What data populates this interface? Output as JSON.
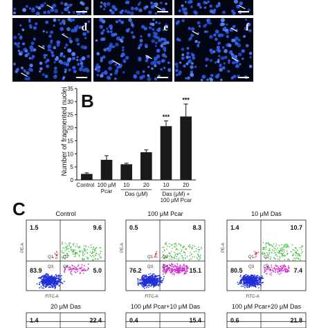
{
  "panel_a": {
    "tile_letters": [
      "",
      "",
      "",
      "d",
      "e",
      "f"
    ]
  },
  "panel_b": {
    "letter": "B",
    "ylabel": "Number of fragmented nuclei",
    "significance": [
      "",
      "",
      "",
      "",
      "***",
      "***"
    ],
    "group_labels": [
      "Das (μM)",
      "Das (μM) + 100 μM Pcar"
    ]
  },
  "chart_data": {
    "type": "bar",
    "categories": [
      "Control",
      "100 μM Pcar",
      "10",
      "20",
      "10",
      "20"
    ],
    "values": [
      2.3,
      7.7,
      6.0,
      10.6,
      20.6,
      24.3
    ],
    "errors": [
      0.4,
      1.6,
      0.4,
      0.9,
      2.0,
      4.8
    ],
    "ylim": [
      0,
      35
    ],
    "yticks": [
      0,
      5,
      10,
      15,
      20,
      25,
      30,
      35
    ],
    "ylabel": "Number of fragmented nuclei",
    "bar_color": "#1a1a1a"
  },
  "panel_c": {
    "letter": "C",
    "plots": [
      {
        "title": "Control",
        "q1": "1.5",
        "q2": "9.6",
        "q3": "83.9",
        "q4": "5.0",
        "show_axes": true
      },
      {
        "title": "100 μM Pcar",
        "q1": "0.5",
        "q2": "8.3",
        "q3": "76.2",
        "q4": "15.1",
        "show_axes": true
      },
      {
        "title": "10 μM Das",
        "q1": "1.4",
        "q2": "10.7",
        "q3": "80.5",
        "q4": "7.4",
        "show_axes": true
      },
      {
        "title": "20 μM Das",
        "q1": "1.4",
        "q2": "22.4",
        "q3": "",
        "q4": "",
        "show_axes": false
      },
      {
        "title": "100 μM Pcar+10 μM Das",
        "q1": "0.4",
        "q2": "15.4",
        "q3": "",
        "q4": "",
        "show_axes": false
      },
      {
        "title": "100 μM Pcar+20 μM Das",
        "q1": "0.6",
        "q2": "21.8",
        "q3": "",
        "q4": "",
        "show_axes": false
      }
    ],
    "quadrant_names": [
      "Q1",
      "Q2",
      "Q3",
      "Q4"
    ],
    "x_axis_label": "FITC-A",
    "y_axis_label": "PE-A"
  }
}
